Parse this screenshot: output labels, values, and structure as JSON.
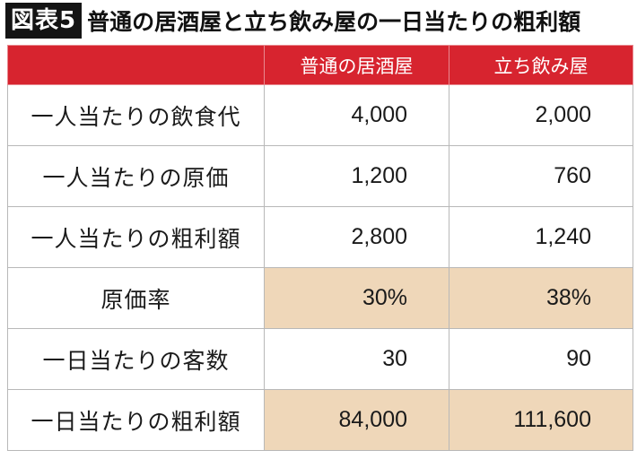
{
  "header": {
    "badge": "図表5",
    "title": "普通の居酒屋と立ち飲み屋の一日当たりの粗利額"
  },
  "table": {
    "columns": [
      "",
      "普通の居酒屋",
      "立ち飲み屋"
    ],
    "rows": [
      {
        "label": "一人当たりの飲食代",
        "values": [
          "4,000",
          "2,000"
        ],
        "highlight": false
      },
      {
        "label": "一人当たりの原価",
        "values": [
          "1,200",
          "760"
        ],
        "highlight": false
      },
      {
        "label": "一人当たりの粗利額",
        "values": [
          "2,800",
          "1,240"
        ],
        "highlight": false
      },
      {
        "label": "原価率",
        "values": [
          "30%",
          "38%"
        ],
        "highlight": true
      },
      {
        "label": "一日当たりの客数",
        "values": [
          "30",
          "90"
        ],
        "highlight": false
      },
      {
        "label": "一日当たりの粗利額",
        "values": [
          "84,000",
          "111,600"
        ],
        "highlight": true
      }
    ]
  },
  "colors": {
    "header_red": "#d7242f",
    "highlight_tan": "#efd7b9",
    "badge_black": "#141414"
  }
}
